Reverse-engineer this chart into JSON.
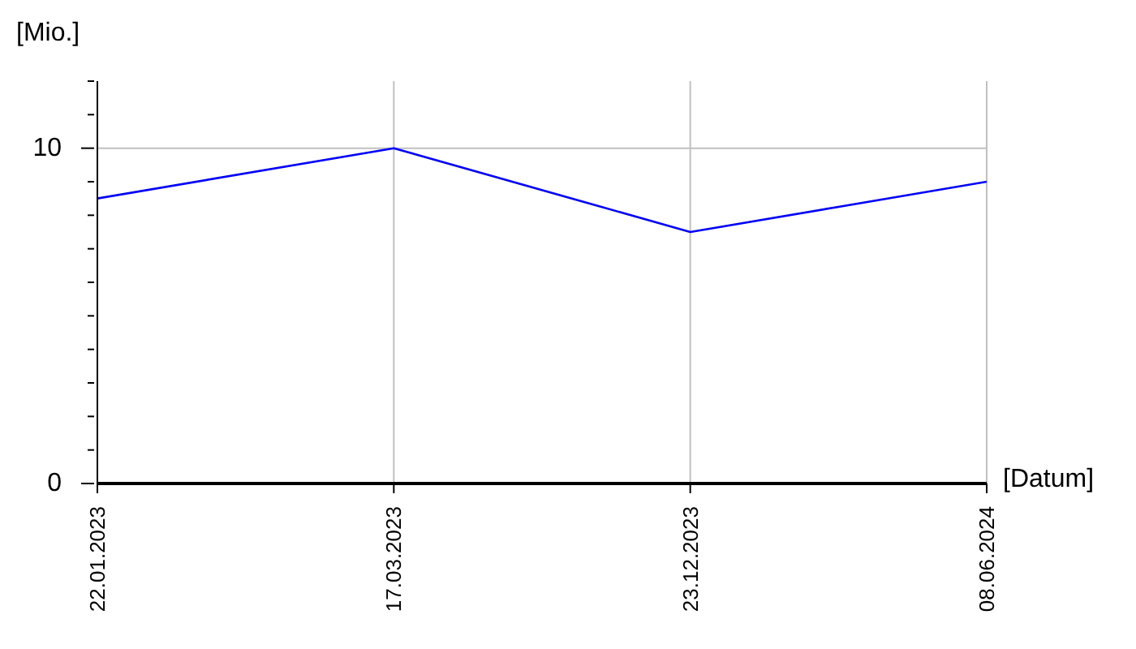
{
  "chart_data": {
    "type": "line",
    "xlabel": "[Datum]",
    "ylabel": "[Mio.]",
    "categories": [
      "22.01.2023",
      "17.03.2023",
      "23.12.2023",
      "08.06.2024"
    ],
    "series": [
      {
        "color": "#0000ff",
        "values": [
          8.5,
          10,
          7.5,
          9
        ]
      }
    ],
    "ylim": [
      0,
      12
    ],
    "yticks": [
      0,
      {
        "value": 1,
        "label": null
      },
      {
        "value": 2,
        "label": null
      },
      {
        "value": 3,
        "label": null
      },
      {
        "value": 4,
        "label": null
      },
      {
        "value": 5,
        "label": null
      },
      {
        "value": 6,
        "label": null
      },
      {
        "value": 7,
        "label": null
      },
      {
        "value": 8,
        "label": null
      },
      {
        "value": 9,
        "label": null
      },
      10,
      {
        "value": 11,
        "label": null
      },
      {
        "value": 12,
        "label": null
      }
    ],
    "grid": true,
    "marker": "none",
    "line_style": "solid"
  }
}
